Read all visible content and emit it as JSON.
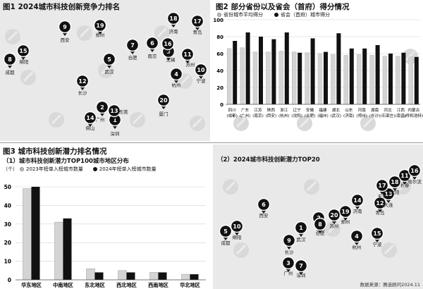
{
  "fig1": {
    "title": "图1 2024城市科技创新竞争力排名",
    "cities": [
      {
        "rank": "1",
        "name": "深圳"
      },
      {
        "rank": "2",
        "name": "广州"
      },
      {
        "rank": "3",
        "name": "无锡"
      },
      {
        "rank": "4",
        "name": "杭州"
      },
      {
        "rank": "5",
        "name": "武汉"
      },
      {
        "rank": "6",
        "name": "南京"
      },
      {
        "rank": "7",
        "name": "合肥"
      },
      {
        "rank": "8",
        "name": "成都"
      },
      {
        "rank": "9",
        "name": "西安"
      },
      {
        "rank": "10",
        "name": "宁波"
      },
      {
        "rank": "11",
        "name": "苏州"
      },
      {
        "rank": "12",
        "name": "长沙"
      },
      {
        "rank": "13",
        "name": "东莞"
      },
      {
        "rank": "14",
        "name": "佛山"
      },
      {
        "rank": "15",
        "name": "绵阳"
      },
      {
        "rank": "16",
        "name": "常州"
      },
      {
        "rank": "17",
        "name": "青岛"
      },
      {
        "rank": "18",
        "name": "济南"
      },
      {
        "rank": "19",
        "name": "郑州"
      },
      {
        "rank": "20",
        "name": "厦门"
      }
    ]
  },
  "fig2": {
    "title": "图2 部分省份以及省会（首府）得分情况",
    "legend_light": "省份城市平均得分",
    "legend_dark": "省会（首府）城市得分"
  },
  "fig3": {
    "title": "图3 城市科技创新潜力排名情况",
    "subtitle": "（1）城市科技创新潜力TOP100城市地区分布",
    "unit": "（个）",
    "legend_light": "2023年榜单入榜城市数量",
    "legend_dark": "2024年榜单入榜城市数量"
  },
  "fig4": {
    "subtitle": "（2）2024城市科技创新潜力TOP20",
    "source": "数据来源：赛迪顾问2024.11",
    "cities": [
      {
        "rank": "1",
        "name": "武汉"
      },
      {
        "rank": "2",
        "name": "南京"
      },
      {
        "rank": "3",
        "name": "广州"
      },
      {
        "rank": "4",
        "name": "杭州"
      },
      {
        "rank": "5",
        "name": "成都"
      },
      {
        "rank": "6",
        "name": "西安"
      },
      {
        "rank": "7",
        "name": "深圳"
      },
      {
        "rank": "8",
        "name": "合肥"
      },
      {
        "rank": "9",
        "name": "长沙"
      },
      {
        "rank": "10",
        "name": "绵阳"
      },
      {
        "rank": "11",
        "name": "长春"
      },
      {
        "rank": "12",
        "name": "青岛"
      },
      {
        "rank": "13",
        "name": "大连"
      },
      {
        "rank": "14",
        "name": "济南"
      },
      {
        "rank": "15",
        "name": "宁波"
      },
      {
        "rank": "16",
        "name": "哈尔滨"
      },
      {
        "rank": "17",
        "name": "天津"
      },
      {
        "rank": "18",
        "name": "沈阳"
      },
      {
        "rank": "19",
        "name": "郑州"
      },
      {
        "rank": "20",
        "name": "苏州"
      }
    ]
  },
  "chart_data": [
    {
      "type": "bar",
      "ylim": [
        0,
        100
      ],
      "yticks": [
        0,
        20,
        40,
        60,
        80,
        100
      ],
      "categories": [
        "四川\n(成都)",
        "广东\n(广州)",
        "江苏\n(南京)",
        "陕西\n(西安)",
        "浙江\n(杭州)",
        "辽宁\n(沈阳)",
        "安徽\n(合肥)",
        "福建\n(福州)",
        "湖北\n(武汉)",
        "山东\n(济南)",
        "河南\n(郑州)",
        "湖南\n(长沙)",
        "河北\n(石家庄)",
        "江西\n(南昌)",
        "内蒙古\n(呼和浩特)"
      ],
      "series": [
        {
          "name": "省份城市平均得分",
          "color": "#d4d4d4",
          "values": [
            66,
            67,
            62,
            62,
            63,
            62,
            61,
            60,
            59,
            58,
            59,
            58,
            57,
            57,
            56
          ]
        },
        {
          "name": "省会（首府）城市得分",
          "color": "#111111",
          "values": [
            75,
            85,
            80,
            77,
            85,
            61,
            78,
            62,
            84,
            66,
            66,
            70,
            60,
            61,
            56
          ]
        }
      ]
    },
    {
      "type": "bar",
      "ylim": [
        0,
        50
      ],
      "yticks": [
        0,
        10,
        20,
        30,
        40,
        50
      ],
      "categories": [
        "华东地区",
        "中南地区",
        "东北地区",
        "西北地区",
        "西南地区",
        "华北地区"
      ],
      "series": [
        {
          "name": "2023年榜单入榜城市数量",
          "color": "#d4d4d4",
          "values": [
            49,
            31,
            6,
            5,
            4,
            3
          ]
        },
        {
          "name": "2024年榜单入榜城市数量",
          "color": "#111111",
          "values": [
            50,
            33,
            4,
            4,
            4,
            3
          ]
        }
      ]
    }
  ]
}
